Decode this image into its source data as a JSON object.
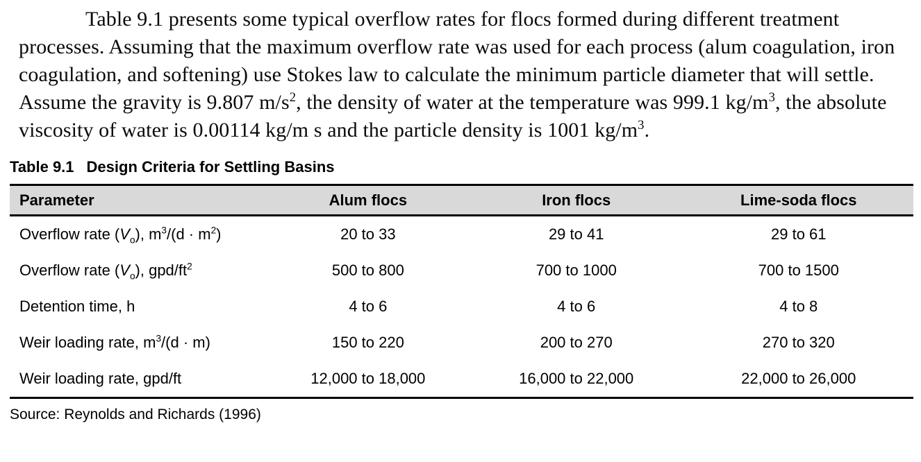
{
  "paragraph": {
    "segments": [
      {
        "t": "Table 9.1 presents some typical overflow rates for flocs formed during different treatment processes. Assuming that the maximum overflow rate was used for each process (alum coagulation, iron coagulation, and softening) use Stokes law to calculate the minimum particle diameter that will settle. Assume the gravity is 9.807 m/s"
      },
      {
        "t": "2",
        "s": "sup"
      },
      {
        "t": ", the density of water at the temperature was 999.1 kg/m"
      },
      {
        "t": "3",
        "s": "sup"
      },
      {
        "t": ", the absolute viscosity of water is 0.00114 kg/m s and the particle density is 1001 kg/m"
      },
      {
        "t": "3",
        "s": "sup"
      },
      {
        "t": "."
      }
    ]
  },
  "table": {
    "caption_label": "Table 9.1",
    "caption_title": "Design Criteria for Settling Basins",
    "columns": [
      "Parameter",
      "Alum flocs",
      "Iron flocs",
      "Lime-soda flocs"
    ],
    "rows": [
      {
        "parameter": [
          {
            "t": "Overflow rate ("
          },
          {
            "t": "V",
            "s": "i"
          },
          {
            "t": "o",
            "s": "sub"
          },
          {
            "t": "), m"
          },
          {
            "t": "3",
            "s": "sup"
          },
          {
            "t": "/(d · m"
          },
          {
            "t": "2",
            "s": "sup"
          },
          {
            "t": ")"
          }
        ],
        "values": [
          "20 to 33",
          "29 to 41",
          "29 to 61"
        ]
      },
      {
        "parameter": [
          {
            "t": "Overflow rate ("
          },
          {
            "t": "V",
            "s": "i"
          },
          {
            "t": "o",
            "s": "sub"
          },
          {
            "t": "), gpd/ft"
          },
          {
            "t": "2",
            "s": "sup"
          }
        ],
        "values": [
          "500 to 800",
          "700 to 1000",
          "700 to 1500"
        ]
      },
      {
        "parameter": [
          {
            "t": "Detention time, h"
          }
        ],
        "values": [
          "4 to 6",
          "4 to 6",
          "4 to 8"
        ]
      },
      {
        "parameter": [
          {
            "t": "Weir loading rate, m"
          },
          {
            "t": "3",
            "s": "sup"
          },
          {
            "t": "/(d · m)"
          }
        ],
        "values": [
          "150 to 220",
          "200 to 270",
          "270 to 320"
        ]
      },
      {
        "parameter": [
          {
            "t": "Weir loading rate, gpd/ft"
          }
        ],
        "values": [
          "12,000 to 18,000",
          "16,000 to 22,000",
          "22,000 to 26,000"
        ]
      }
    ],
    "source": "Source: Reynolds and Richards (1996)"
  },
  "colors": {
    "header_bg": "#d9d9d9",
    "rule": "#000000",
    "text": "#000000"
  }
}
